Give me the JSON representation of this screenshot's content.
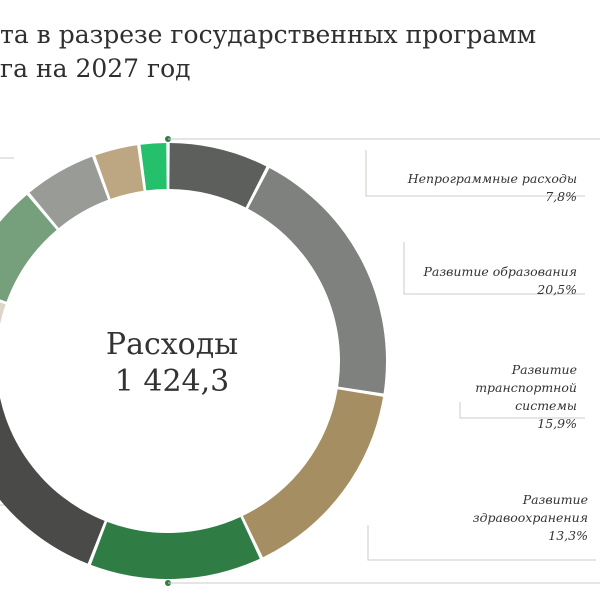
{
  "title": {
    "line1": "та в разрезе государственных программ",
    "line2": "га на 2027 год"
  },
  "center": {
    "label": "Расходы",
    "value": "1 424,3"
  },
  "chart_data": {
    "type": "pie",
    "donut": true,
    "total": "1 424,3",
    "slices": [
      {
        "name": "Непрограммные расходы",
        "label_lines": [
          "Непрограммные расходы"
        ],
        "value": 7.8,
        "value_label": "7,8%",
        "color": "#5c5f5b"
      },
      {
        "name": "Развитие образования",
        "label_lines": [
          "Развитие образования"
        ],
        "value": 20.5,
        "value_label": "20,5%",
        "color": "#7e817d"
      },
      {
        "name": "Развитие транспортной системы",
        "label_lines": [
          "Развитие",
          "транспортной",
          "системы"
        ],
        "value": 15.9,
        "value_label": "15,9%",
        "color": "#a58e62"
      },
      {
        "name": "Развитие здравоохранения",
        "label_lines": [
          "Развитие",
          "здравоохранения"
        ],
        "value": 13.3,
        "value_label": "13,3%",
        "color": "#2f7d44"
      },
      {
        "name": "",
        "label_lines": [],
        "value": 18.9,
        "value_label": "",
        "color": "#4a4b49"
      },
      {
        "name": "",
        "label_lines": [],
        "value": 6.4,
        "value_label": "",
        "color": "#ddd5c8"
      },
      {
        "name": "",
        "label_lines": [],
        "value": 8.7,
        "value_label": "",
        "color": "#76a07c"
      },
      {
        "name": "",
        "label_lines": [],
        "value": 5.7,
        "value_label": "",
        "color": "#999b97"
      },
      {
        "name": "",
        "label_lines": [],
        "value": 3.5,
        "value_label": "",
        "color": "#bda782"
      },
      {
        "name": "",
        "label_lines": [],
        "value": 2.2,
        "value_label": "",
        "color": "#25c06b"
      }
    ]
  }
}
